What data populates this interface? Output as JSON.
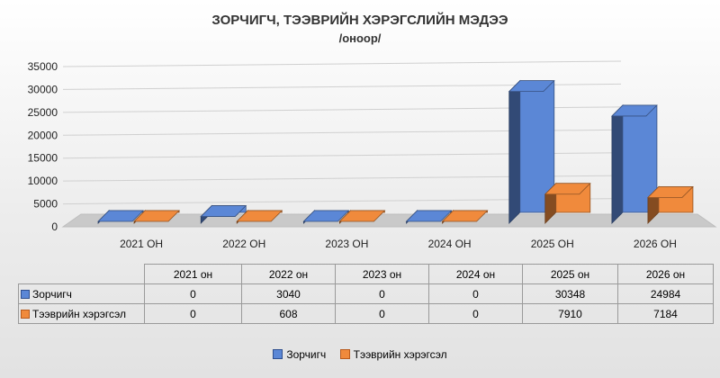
{
  "chart_data": {
    "type": "bar",
    "title": "ЗОРЧИГЧ, ТЭЭВРИЙН ХЭРЭГСЛИЙН МЭДЭЭ",
    "subtitle": "/оноор/",
    "categories": [
      "2021 ОН",
      "2022 ОН",
      "2023 ОН",
      "2024 ОН",
      "2025 ОН",
      "2026 ОН"
    ],
    "table_headers": [
      "2021 он",
      "2022 он",
      "2023 он",
      "2024 он",
      "2025 он",
      "2026 он"
    ],
    "series": [
      {
        "name": "Зорчигч",
        "values": [
          0,
          3040,
          0,
          0,
          30348,
          24984
        ],
        "color": "#5b87d6"
      },
      {
        "name": "Тээврийн хэрэгсэл",
        "values": [
          0,
          608,
          0,
          0,
          7910,
          7184
        ],
        "color": "#f08a3c"
      }
    ],
    "yticks": [
      "0",
      "5000",
      "10000",
      "15000",
      "20000",
      "25000",
      "30000",
      "35000"
    ],
    "ylim": [
      0,
      35000
    ],
    "style": "3d-column",
    "legend": "bottom",
    "data_table": true
  }
}
